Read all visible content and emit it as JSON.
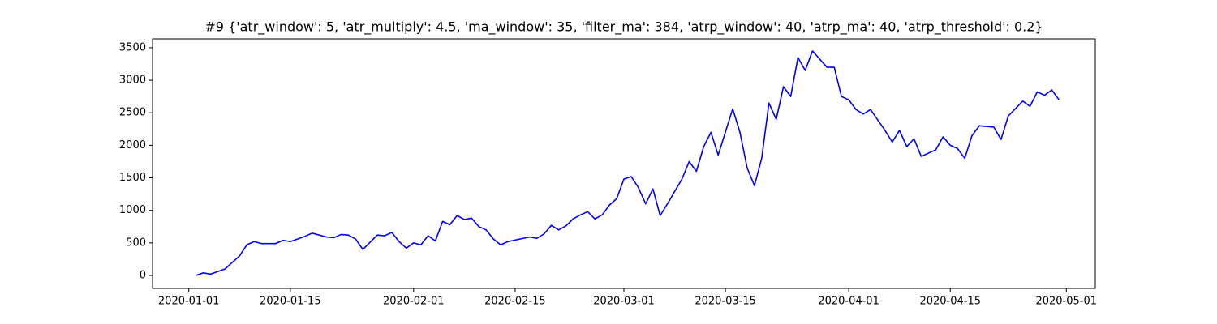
{
  "chart_data": {
    "type": "line",
    "title": "#9 {'atr_window': 5, 'atr_multiply': 4.5, 'ma_window': 35, 'filter_ma': 384, 'atrp_window': 40, 'atrp_ma': 40, 'atrp_threshold': 0.2}",
    "x": [
      "2020-01-02",
      "2020-01-03",
      "2020-01-04",
      "2020-01-06",
      "2020-01-07",
      "2020-01-08",
      "2020-01-09",
      "2020-01-10",
      "2020-01-11",
      "2020-01-13",
      "2020-01-14",
      "2020-01-15",
      "2020-01-17",
      "2020-01-18",
      "2020-01-20",
      "2020-01-21",
      "2020-01-22",
      "2020-01-23",
      "2020-01-24",
      "2020-01-25",
      "2020-01-27",
      "2020-01-28",
      "2020-01-29",
      "2020-01-30",
      "2020-01-31",
      "2020-02-01",
      "2020-02-02",
      "2020-02-03",
      "2020-02-04",
      "2020-02-05",
      "2020-02-06",
      "2020-02-07",
      "2020-02-08",
      "2020-02-09",
      "2020-02-10",
      "2020-02-11",
      "2020-02-12",
      "2020-02-13",
      "2020-02-14",
      "2020-02-17",
      "2020-02-18",
      "2020-02-19",
      "2020-02-20",
      "2020-02-21",
      "2020-02-22",
      "2020-02-23",
      "2020-02-24",
      "2020-02-25",
      "2020-02-26",
      "2020-02-27",
      "2020-02-28",
      "2020-02-29",
      "2020-03-01",
      "2020-03-02",
      "2020-03-03",
      "2020-03-04",
      "2020-03-05",
      "2020-03-06",
      "2020-03-07",
      "2020-03-09",
      "2020-03-10",
      "2020-03-11",
      "2020-03-12",
      "2020-03-13",
      "2020-03-14",
      "2020-03-16",
      "2020-03-17",
      "2020-03-18",
      "2020-03-19",
      "2020-03-20",
      "2020-03-21",
      "2020-03-22",
      "2020-03-23",
      "2020-03-24",
      "2020-03-25",
      "2020-03-26",
      "2020-03-27",
      "2020-03-29",
      "2020-03-30",
      "2020-03-31",
      "2020-04-01",
      "2020-04-02",
      "2020-04-03",
      "2020-04-04",
      "2020-04-06",
      "2020-04-07",
      "2020-04-08",
      "2020-04-09",
      "2020-04-10",
      "2020-04-11",
      "2020-04-13",
      "2020-04-14",
      "2020-04-15",
      "2020-04-16",
      "2020-04-17",
      "2020-04-18",
      "2020-04-19",
      "2020-04-21",
      "2020-04-22",
      "2020-04-23",
      "2020-04-25",
      "2020-04-26",
      "2020-04-27",
      "2020-04-28",
      "2020-04-29",
      "2020-04-30"
    ],
    "values": [
      0,
      40,
      20,
      100,
      200,
      300,
      470,
      520,
      490,
      490,
      540,
      520,
      600,
      650,
      590,
      580,
      630,
      620,
      560,
      400,
      620,
      610,
      660,
      520,
      420,
      500,
      470,
      610,
      530,
      830,
      780,
      920,
      860,
      880,
      750,
      700,
      560,
      470,
      520,
      590,
      570,
      640,
      770,
      700,
      760,
      870,
      930,
      980,
      870,
      930,
      1080,
      1180,
      1480,
      1520,
      1350,
      1100,
      1330,
      920,
      1100,
      1480,
      1750,
      1600,
      1980,
      2200,
      1850,
      2560,
      2200,
      1650,
      1380,
      1800,
      2650,
      2400,
      2900,
      2750,
      3350,
      3150,
      3450,
      3200,
      3200,
      2750,
      2700,
      2550,
      2480,
      2550,
      2230,
      2050,
      2230,
      1980,
      2100,
      1830,
      1930,
      2130,
      2000,
      1950,
      1800,
      2150,
      2300,
      2280,
      2090,
      2450,
      2680,
      2600,
      2820,
      2770,
      2850,
      2700
    ],
    "color": "#0000ff",
    "xlim": [
      "2019-12-27",
      "2020-05-05"
    ],
    "xticks": [
      "2020-01-01",
      "2020-01-15",
      "2020-02-01",
      "2020-02-15",
      "2020-03-01",
      "2020-03-15",
      "2020-04-01",
      "2020-04-15",
      "2020-05-01"
    ],
    "ylim": [
      -199,
      3636
    ],
    "yticks": [
      0,
      500,
      1000,
      1500,
      2000,
      2500,
      3000,
      3500
    ],
    "grid": false
  }
}
